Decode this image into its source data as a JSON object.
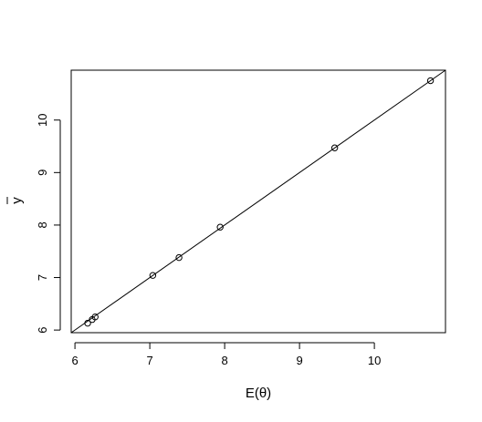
{
  "chart_data": {
    "type": "scatter",
    "title": "",
    "xlabel": "E(θ)",
    "ylabel": "y",
    "ylabel_overbar": true,
    "xlim": [
      5.95,
      10.95
    ],
    "ylim": [
      5.95,
      10.95
    ],
    "x_ticks": [
      6,
      7,
      8,
      9,
      10
    ],
    "x_tick_labels": [
      "6",
      "7",
      "8",
      "9",
      "10"
    ],
    "y_ticks": [
      6,
      7,
      8,
      9,
      10
    ],
    "y_tick_labels": [
      "6",
      "7",
      "8",
      "9",
      "10"
    ],
    "grid": false,
    "series": [
      {
        "name": "points",
        "marker": "open-circle",
        "x": [
          6.17,
          6.23,
          6.27,
          7.04,
          7.39,
          7.94,
          9.47,
          10.75
        ],
        "y": [
          6.13,
          6.2,
          6.25,
          7.04,
          7.38,
          7.96,
          9.47,
          10.75
        ]
      }
    ],
    "reference_line": {
      "type": "identity",
      "slope": 1,
      "intercept": 0
    }
  },
  "colors": {
    "ink": "#000000",
    "background": "#ffffff"
  }
}
